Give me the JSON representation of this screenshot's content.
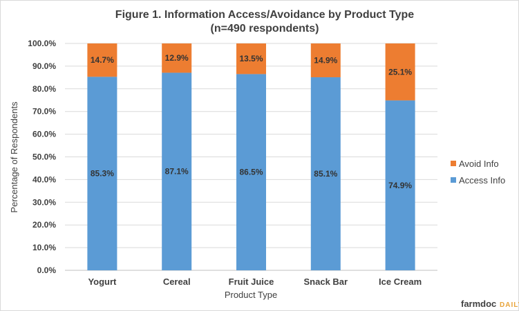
{
  "chart_data": {
    "type": "bar",
    "stacked": true,
    "title": "Figure 1. Information Access/Avoidance by Product Type",
    "subtitle": "(n=490 respondents)",
    "xlabel": "Product Type",
    "ylabel": "Percentage of Respondents",
    "ylim": [
      0,
      100
    ],
    "yticks": [
      "0.0%",
      "10.0%",
      "20.0%",
      "30.0%",
      "40.0%",
      "50.0%",
      "60.0%",
      "70.0%",
      "80.0%",
      "90.0%",
      "100.0%"
    ],
    "grid": true,
    "legend_position": "right",
    "categories": [
      "Yogurt",
      "Cereal",
      "Fruit Juice",
      "Snack Bar",
      "Ice Cream"
    ],
    "series": [
      {
        "name": "Access Info",
        "color": "#5b9bd5",
        "values": [
          85.3,
          87.1,
          86.5,
          85.1,
          74.9
        ],
        "labels": [
          "85.3%",
          "87.1%",
          "86.5%",
          "85.1%",
          "74.9%"
        ]
      },
      {
        "name": "Avoid Info",
        "color": "#ed7d31",
        "values": [
          14.7,
          12.9,
          13.5,
          14.9,
          25.1
        ],
        "labels": [
          "14.7%",
          "12.9%",
          "13.5%",
          "14.9%",
          "25.1%"
        ]
      }
    ]
  },
  "legend": {
    "items": [
      {
        "name": "Avoid Info",
        "color": "#ed7d31"
      },
      {
        "name": "Access Info",
        "color": "#5b9bd5"
      }
    ]
  },
  "brand": {
    "part1": "farmdoc",
    "part2": "DAILY"
  }
}
